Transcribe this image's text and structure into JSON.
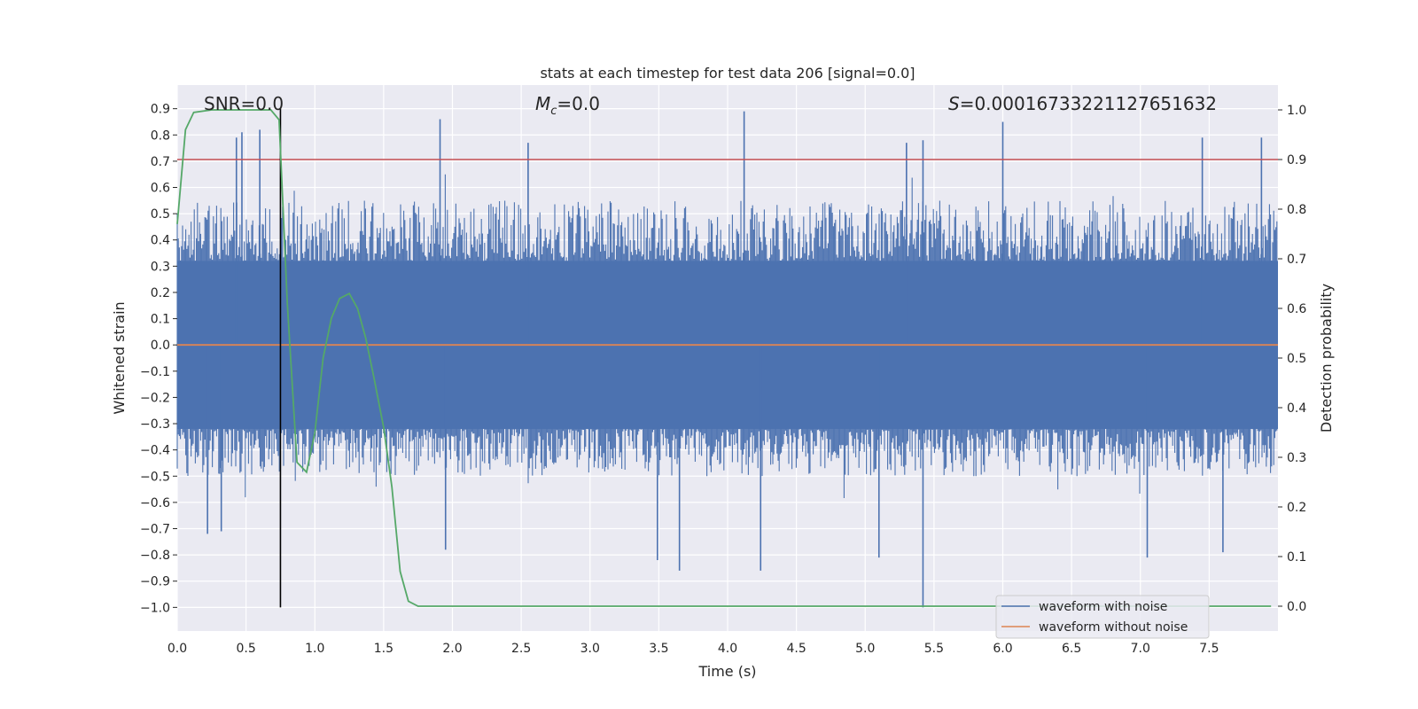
{
  "chart_data": {
    "type": "line",
    "title": "stats at each timestep for test data 206 [signal=0.0]",
    "xlabel": "Time (s)",
    "ylabel": "Whitened strain",
    "y2label": "Detection probability",
    "xlim": [
      0.0,
      8.0
    ],
    "ylim": [
      -1.09,
      0.99
    ],
    "y2lim": [
      -0.05,
      1.05
    ],
    "x_ticks": [
      0.0,
      0.5,
      1.0,
      1.5,
      2.0,
      2.5,
      3.0,
      3.5,
      4.0,
      4.5,
      5.0,
      5.5,
      6.0,
      6.5,
      7.0,
      7.5
    ],
    "x_tick_labels": [
      "0.0",
      "0.5",
      "1.0",
      "1.5",
      "2.0",
      "2.5",
      "3.0",
      "3.5",
      "4.0",
      "4.5",
      "5.0",
      "5.5",
      "6.0",
      "6.5",
      "7.0",
      "7.5"
    ],
    "y_ticks": [
      0.9,
      0.8,
      0.7,
      0.6,
      0.5,
      0.4,
      0.3,
      0.2,
      0.1,
      0.0,
      -0.1,
      -0.2,
      -0.3,
      -0.4,
      -0.5,
      -0.6,
      -0.7,
      -0.8,
      -0.9,
      -1.0
    ],
    "y_tick_labels": [
      "0.9",
      "0.8",
      "0.7",
      "0.6",
      "0.5",
      "0.4",
      "0.3",
      "0.2",
      "0.1",
      "0.0",
      "−0.1",
      "−0.2",
      "−0.3",
      "−0.4",
      "−0.5",
      "−0.6",
      "−0.7",
      "−0.8",
      "−0.9",
      "−1.0"
    ],
    "y2_ticks": [
      1.0,
      0.9,
      0.8,
      0.7,
      0.6,
      0.5,
      0.4,
      0.3,
      0.2,
      0.1,
      0.0
    ],
    "y2_tick_labels": [
      "1.0",
      "0.9",
      "0.8",
      "0.7",
      "0.6",
      "0.5",
      "0.4",
      "0.3",
      "0.2",
      "0.1",
      "0.0"
    ],
    "grid": true,
    "background": "#eaeaf2",
    "annotations": {
      "snr": "SNR=0.0",
      "mc_symbol": "M",
      "mc_sub": "c",
      "mc_value": "=0.0",
      "s_symbol": "S",
      "s_value": "=0.00016733221127651632"
    },
    "legend": {
      "position": "lower-right",
      "entries": [
        {
          "label": "waveform with noise",
          "color": "#4c72b0"
        },
        {
          "label": "waveform without noise",
          "color": "#dd8452"
        }
      ]
    },
    "noise": {
      "name": "waveform with noise",
      "color": "#4c72b0",
      "core_amplitude": 0.32,
      "typical_upper": 0.55,
      "typical_lower": -0.5,
      "spikes": [
        {
          "x": 0.43,
          "y": 0.79
        },
        {
          "x": 0.47,
          "y": 0.81
        },
        {
          "x": 0.6,
          "y": 0.82
        },
        {
          "x": 1.91,
          "y": 0.86
        },
        {
          "x": 2.55,
          "y": 0.77
        },
        {
          "x": 4.12,
          "y": 0.89
        },
        {
          "x": 5.3,
          "y": 0.77
        },
        {
          "x": 5.42,
          "y": 0.78
        },
        {
          "x": 6.0,
          "y": 0.85
        },
        {
          "x": 7.45,
          "y": 0.79
        },
        {
          "x": 7.88,
          "y": 0.79
        },
        {
          "x": 0.22,
          "y": -0.72
        },
        {
          "x": 0.32,
          "y": -0.71
        },
        {
          "x": 1.95,
          "y": -0.78
        },
        {
          "x": 3.49,
          "y": -0.82
        },
        {
          "x": 3.65,
          "y": -0.86
        },
        {
          "x": 4.24,
          "y": -0.86
        },
        {
          "x": 5.1,
          "y": -0.81
        },
        {
          "x": 5.42,
          "y": -1.0
        },
        {
          "x": 7.05,
          "y": -0.81
        },
        {
          "x": 7.6,
          "y": -0.79
        }
      ]
    },
    "clean_waveform": {
      "name": "waveform without noise",
      "color": "#dd8452",
      "y": 0.0
    },
    "threshold": {
      "y2": 0.9,
      "color": "#c44e52"
    },
    "marker_line": {
      "x": 0.75,
      "y_from": -1.0,
      "y_to": 0.9,
      "color": "#000000"
    },
    "probability": {
      "name": "Detection probability",
      "color": "#55a868",
      "x": [
        0.0,
        0.06,
        0.12,
        0.25,
        0.5,
        0.68,
        0.74,
        0.8,
        0.87,
        0.94,
        1.0,
        1.06,
        1.12,
        1.18,
        1.25,
        1.31,
        1.37,
        1.43,
        1.5,
        1.56,
        1.62,
        1.68,
        1.75,
        7.95
      ],
      "y": [
        0.77,
        0.96,
        0.995,
        1.0,
        1.0,
        1.0,
        0.98,
        0.61,
        0.29,
        0.27,
        0.35,
        0.5,
        0.58,
        0.62,
        0.63,
        0.6,
        0.54,
        0.46,
        0.36,
        0.24,
        0.07,
        0.01,
        0.0,
        0.0
      ]
    }
  }
}
